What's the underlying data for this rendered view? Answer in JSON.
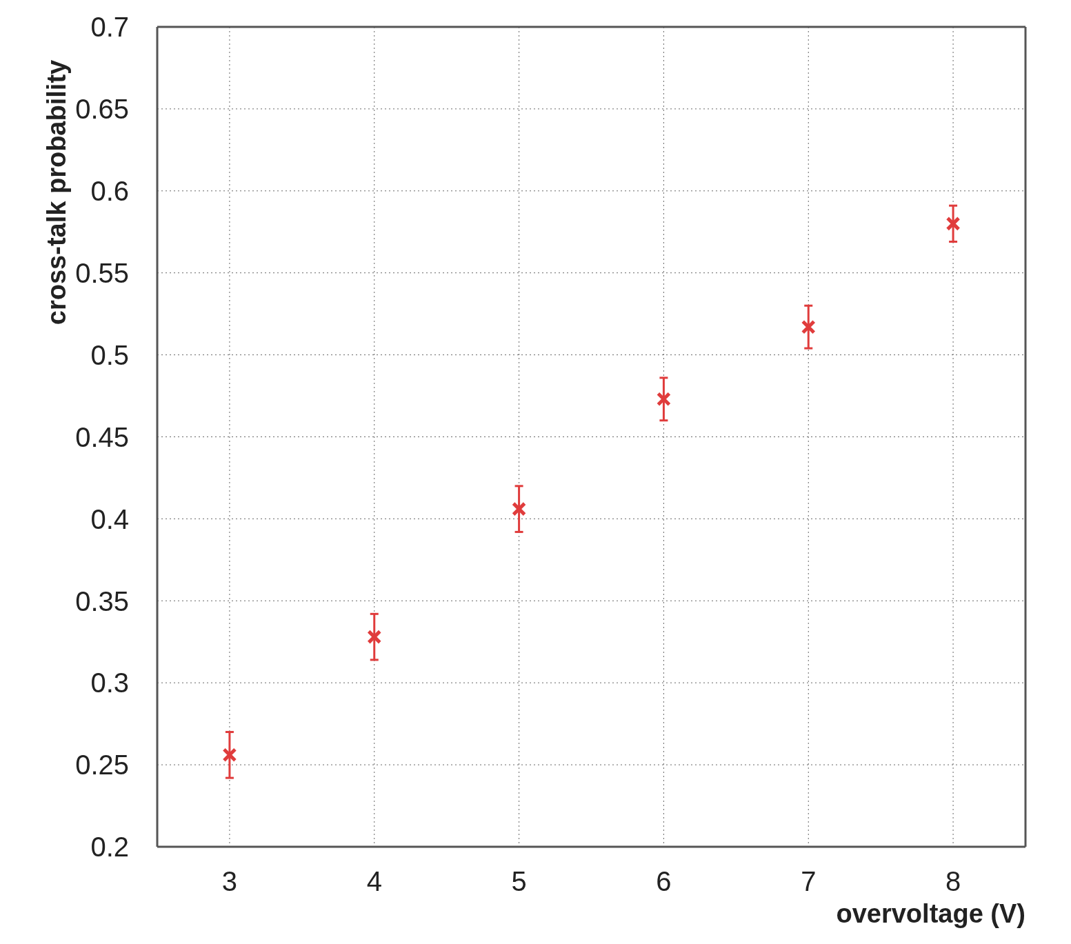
{
  "chart_data": {
    "type": "scatter",
    "xlabel": "overvoltage (V)",
    "ylabel": "cross-talk probability",
    "x": [
      3,
      4,
      5,
      6,
      7,
      8
    ],
    "series": [
      {
        "color": "#e03c3c",
        "values": [
          0.256,
          0.328,
          0.406,
          0.473,
          0.517,
          0.58
        ],
        "errors": [
          0.014,
          0.014,
          0.014,
          0.013,
          0.013,
          0.011
        ]
      }
    ],
    "xlim": [
      2.5,
      8.5
    ],
    "xticks": [
      3,
      4,
      5,
      6,
      7,
      8
    ],
    "ylim": [
      0.2,
      0.7
    ],
    "yticks": [
      0.2,
      0.25,
      0.3,
      0.35,
      0.4,
      0.45,
      0.5,
      0.55,
      0.6,
      0.65,
      0.7
    ],
    "grid": true,
    "marker": "cross"
  }
}
